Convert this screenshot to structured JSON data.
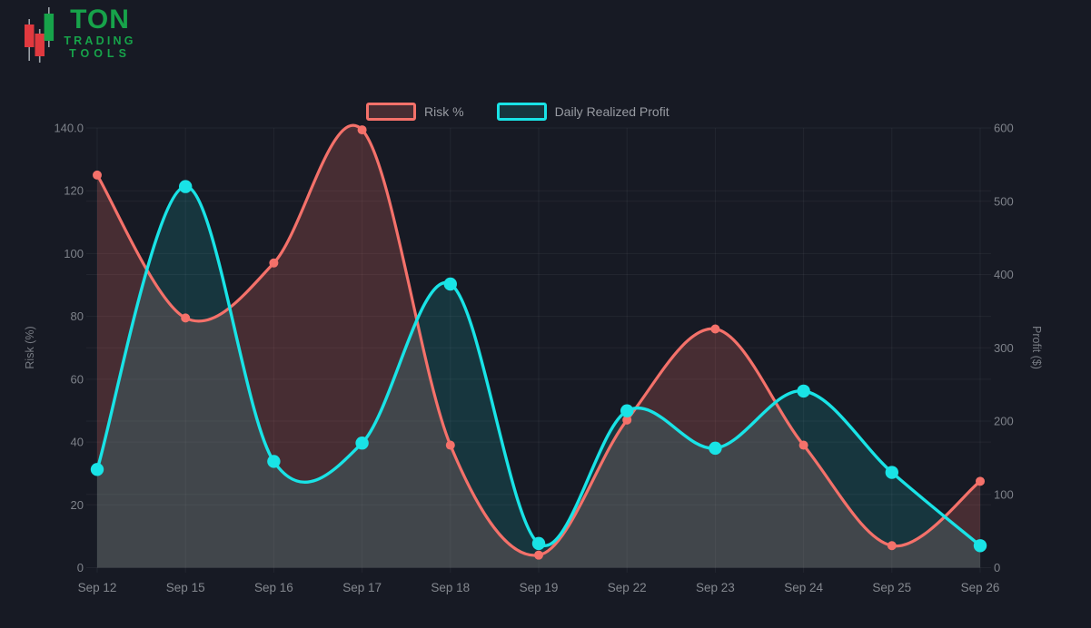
{
  "logo": {
    "title": "TON",
    "subtitle1": "TRADING",
    "subtitle2": "TOOLS",
    "brand_green": "#17A34A",
    "candle_red": "#E0393F"
  },
  "chart_data": {
    "type": "line",
    "title": "",
    "grid": true,
    "legend_position": "top",
    "x": [
      "Sep 12",
      "Sep 15",
      "Sep 16",
      "Sep 17",
      "Sep 18",
      "Sep 19",
      "Sep 22",
      "Sep 23",
      "Sep 24",
      "Sep 25",
      "Sep 26"
    ],
    "series": [
      {
        "name": "Risk %",
        "axis": "left",
        "color": "#F4716A",
        "fill": "rgba(244,113,106,0.22)",
        "marker_radius": 5,
        "line_width": 3.2,
        "values": [
          125,
          79.5,
          97,
          139.4,
          39,
          4,
          47,
          76,
          39,
          7,
          27.5
        ]
      },
      {
        "name": "Daily Realized Profit",
        "axis": "right",
        "color": "#19E3E6",
        "fill": "rgba(25,227,230,0.14)",
        "marker_radius": 7.2,
        "line_width": 3.4,
        "values": [
          134,
          520,
          145,
          170,
          387,
          33,
          214,
          163,
          241,
          130,
          30
        ]
      }
    ],
    "left_axis": {
      "title": "Risk (%)",
      "min": 0,
      "max": 140,
      "ticks": [
        "140.0",
        "120",
        "100",
        "80",
        "60",
        "40",
        "20",
        "0"
      ]
    },
    "right_axis": {
      "title": "Profit ($)",
      "min": 0,
      "max": 600,
      "ticks": [
        "600",
        "500",
        "400",
        "300",
        "200",
        "100",
        "0"
      ]
    },
    "colors": {
      "background": "#171A24",
      "gridline": "rgba(255,255,255,0.05)",
      "tick_text": "#7E828A",
      "x_tick_text": "#84888F",
      "axis_title_text": "#777B83",
      "legend_text": "#989BA2"
    }
  }
}
